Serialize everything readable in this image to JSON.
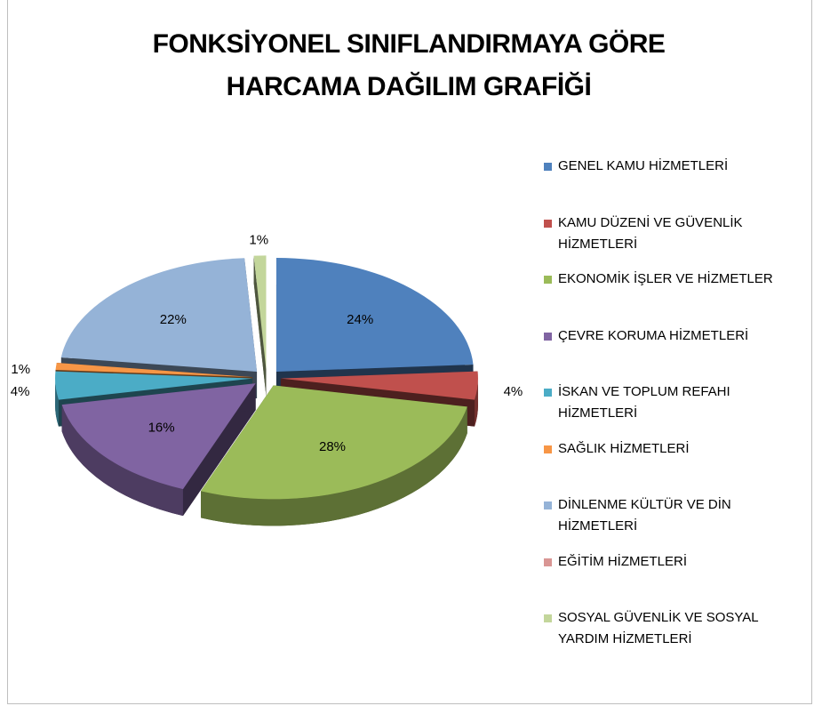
{
  "chart_data": {
    "type": "pie",
    "title": "FONKSİYONEL SINIFLANDIRMAYA GÖRE HARCAMA DAĞILIM GRAFİĞİ",
    "categories": [
      "GENEL KAMU HİZMETLERİ",
      "KAMU DÜZENİ VE GÜVENLİK HİZMETLERİ",
      "EKONOMİK İŞLER VE HİZMETLER",
      "ÇEVRE KORUMA HİZMETLERİ",
      "İSKAN VE TOPLUM REFAHI HİZMETLERİ",
      "SAĞLIK HİZMETLERİ",
      "DİNLENME KÜLTÜR VE DİN HİZMETLERİ",
      "EĞİTİM HİZMETLERİ",
      "SOSYAL GÜVENLİK VE SOSYAL YARDIM HİZMETLERİ"
    ],
    "values": [
      24,
      4,
      28,
      16,
      4,
      1,
      22,
      0,
      1
    ],
    "value_labels": [
      "24%",
      "4%",
      "28%",
      "16%",
      "4%",
      "1%",
      "22%",
      null,
      "1%"
    ],
    "colors": [
      "#4f81bd",
      "#c0504d",
      "#9bbb59",
      "#8064a2",
      "#4bacc6",
      "#f79646",
      "#95b3d7",
      "#d99694",
      "#c3d69b"
    ],
    "legend": "right"
  }
}
